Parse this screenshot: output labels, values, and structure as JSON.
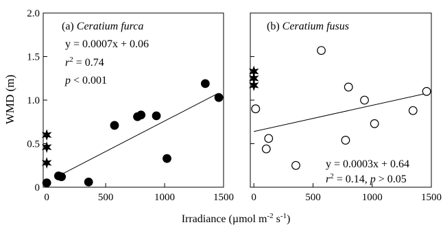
{
  "figure": {
    "ylabel": "WMD (m)",
    "xlabel_main": "Irradiance (µmol m",
    "xlabel_sup1": "-2",
    "xlabel_mid": " s",
    "xlabel_sup2": "-1",
    "xlabel_end": ")"
  },
  "chart_data": [
    {
      "type": "scatter",
      "panel_letter": "(a)",
      "species": "Ceratium furca",
      "xlim": [
        -30,
        1500
      ],
      "ylim": [
        0,
        2.0
      ],
      "xticks": [
        0,
        500,
        1000,
        1500
      ],
      "yticks": [
        0,
        0.5,
        1.0,
        1.5,
        2.0
      ],
      "ytick_labels": [
        "0",
        "0.5",
        "1.0",
        "1.5",
        "2.0"
      ],
      "marker": "filled-circle",
      "points": [
        {
          "x": 0,
          "y": 0.05
        },
        {
          "x": 100,
          "y": 0.13
        },
        {
          "x": 125,
          "y": 0.12
        },
        {
          "x": 355,
          "y": 0.06
        },
        {
          "x": 575,
          "y": 0.71
        },
        {
          "x": 770,
          "y": 0.81
        },
        {
          "x": 800,
          "y": 0.83
        },
        {
          "x": 930,
          "y": 0.82
        },
        {
          "x": 1020,
          "y": 0.33
        },
        {
          "x": 1345,
          "y": 1.19
        },
        {
          "x": 1460,
          "y": 1.03
        }
      ],
      "star_points": [
        {
          "x": 0,
          "y": 0.28
        },
        {
          "x": 0,
          "y": 0.46
        },
        {
          "x": 0,
          "y": 0.6
        }
      ],
      "fit": {
        "slope": 0.0007,
        "intercept": 0.06,
        "x_range": [
          95,
          1450
        ]
      },
      "equation": "y = 0.0007x + 0.06",
      "r2_label": "r",
      "r2_sup": "2",
      "r2_value": " = 0.74",
      "p_label": "p",
      "p_value": " < 0.001"
    },
    {
      "type": "scatter",
      "panel_letter": "(b)",
      "species": "Ceratium fusus",
      "xlim": [
        -30,
        1500
      ],
      "ylim": [
        0,
        2.0
      ],
      "xticks": [
        0,
        500,
        1000,
        1500
      ],
      "marker": "open-circle",
      "points": [
        {
          "x": 15,
          "y": 0.9
        },
        {
          "x": 105,
          "y": 0.44
        },
        {
          "x": 125,
          "y": 0.56
        },
        {
          "x": 355,
          "y": 0.25
        },
        {
          "x": 570,
          "y": 1.57
        },
        {
          "x": 775,
          "y": 0.54
        },
        {
          "x": 800,
          "y": 1.15
        },
        {
          "x": 935,
          "y": 1.0
        },
        {
          "x": 1020,
          "y": 0.73
        },
        {
          "x": 1345,
          "y": 0.88
        },
        {
          "x": 1460,
          "y": 1.1
        }
      ],
      "star_points": [
        {
          "x": 0,
          "y": 1.17
        },
        {
          "x": 0,
          "y": 1.25
        },
        {
          "x": 0,
          "y": 1.33
        }
      ],
      "fit": {
        "slope": 0.0003,
        "intercept": 0.64,
        "x_range": [
          0,
          1450
        ]
      },
      "equation": "y = 0.0003x + 0.64",
      "r2_label": "r",
      "r2_sup": "2",
      "r2_value": " = 0.14, ",
      "p_label": "p",
      "p_value": " > 0.05"
    }
  ]
}
